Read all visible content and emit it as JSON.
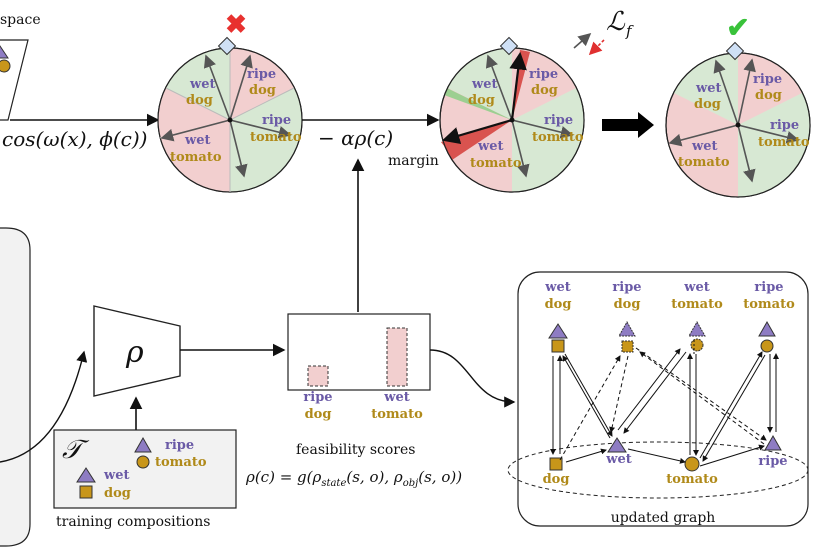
{
  "header": {
    "space_label": "space"
  },
  "wheel_labels": {
    "a": {
      "state": "wet",
      "obj": "dog"
    },
    "b": {
      "state": "ripe",
      "obj": "dog"
    },
    "c": {
      "state": "ripe",
      "obj": "tomato"
    },
    "d": {
      "state": "wet",
      "obj": "tomato"
    }
  },
  "equations": {
    "cosine": "cos(ω(x), ϕ(c))",
    "penalty": "− αρ(c)",
    "loss": "ℒ",
    "loss_sub": "f",
    "rho_symbol": "ρ",
    "feasibility": "ρ(c) = g(ρ",
    "feasibility_state_sub": "state",
    "feasibility_mid": "(s, o), ρ",
    "feasibility_obj_sub": "obj",
    "feasibility_end": "(s, o))",
    "train_symbol": "𝒯"
  },
  "annotations": {
    "margin": "margin"
  },
  "marks": {
    "fail": "✖",
    "pass": "✔"
  },
  "feasibility": {
    "caption": "feasibility scores",
    "bars": [
      {
        "state": "ripe",
        "obj": "dog"
      },
      {
        "state": "wet",
        "obj": "tomato"
      }
    ]
  },
  "training": {
    "caption": "training compositions",
    "items": [
      {
        "state": "ripe",
        "obj": "tomato"
      },
      {
        "state": "wet",
        "obj": "dog"
      }
    ]
  },
  "graph": {
    "caption": "updated graph",
    "top_labels": [
      {
        "state": "wet",
        "obj": "dog"
      },
      {
        "state": "ripe",
        "obj": "dog"
      },
      {
        "state": "wet",
        "obj": "tomato"
      },
      {
        "state": "ripe",
        "obj": "tomato"
      }
    ],
    "bottom_labels": {
      "dog": "dog",
      "wet": "wet",
      "tomato": "tomato",
      "ripe": "ripe"
    }
  },
  "colors": {
    "state": "#6a5aa6",
    "object": "#b08a1a",
    "green_sector": "#d7e8d3",
    "pink_sector": "#f2cfcf",
    "margin_red": "#d9534f",
    "cross": "#e8312f",
    "check": "#39c23a"
  }
}
